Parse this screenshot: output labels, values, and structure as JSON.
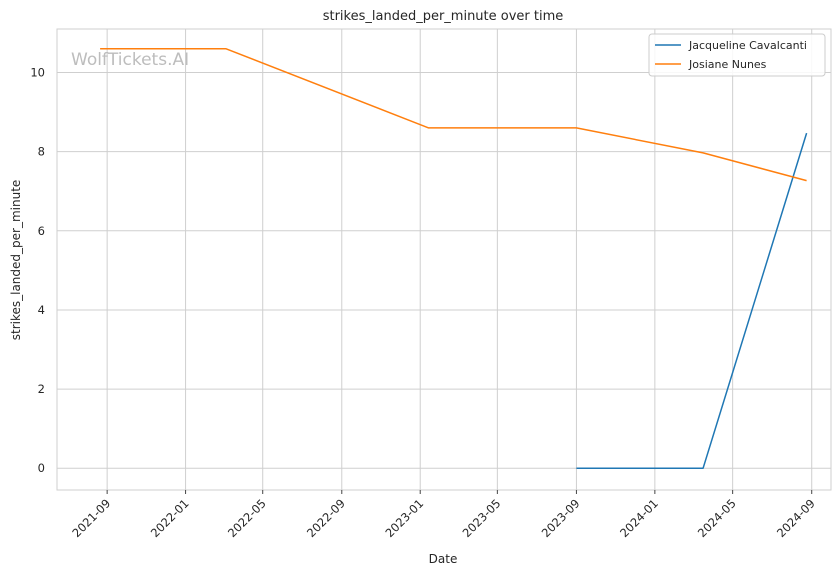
{
  "watermark": "WolfTickets.AI",
  "chart_data": {
    "type": "line",
    "title": "strikes_landed_per_minute over time",
    "xlabel": "Date",
    "ylabel": "strikes_landed_per_minute",
    "xlim": [
      "2021-06-15",
      "2024-10-01"
    ],
    "ylim": [
      -0.55,
      11.1
    ],
    "x_ticks": [
      "2021-09",
      "2022-01",
      "2022-05",
      "2022-09",
      "2023-01",
      "2023-05",
      "2023-09",
      "2024-01",
      "2024-05",
      "2024-09"
    ],
    "y_ticks": [
      0,
      2,
      4,
      6,
      8,
      10
    ],
    "grid": true,
    "legend_position": "top-right",
    "series": [
      {
        "name": "Jacqueline Cavalcanti",
        "color": "#1f77b4",
        "points": [
          {
            "x": "2023-09-01",
            "y": 0.0
          },
          {
            "x": "2024-03-16",
            "y": 0.0
          },
          {
            "x": "2024-08-24",
            "y": 8.47
          }
        ]
      },
      {
        "name": "Josiane Nunes",
        "color": "#ff7f0e",
        "points": [
          {
            "x": "2021-08-21",
            "y": 10.6
          },
          {
            "x": "2022-03-05",
            "y": 10.6
          },
          {
            "x": "2023-01-14",
            "y": 8.6
          },
          {
            "x": "2023-09-01",
            "y": 8.6
          },
          {
            "x": "2024-03-16",
            "y": 7.97
          },
          {
            "x": "2024-08-24",
            "y": 7.27
          }
        ]
      }
    ]
  }
}
